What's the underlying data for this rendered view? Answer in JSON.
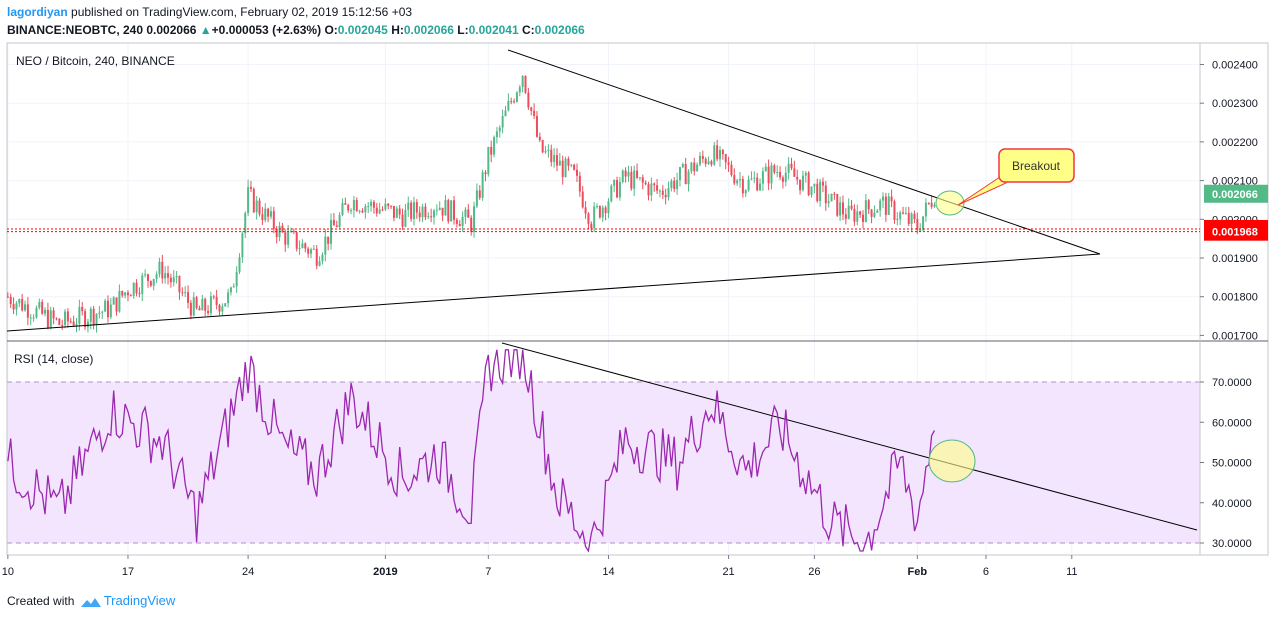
{
  "header": {
    "user": "lagordiyan",
    "published": "published on TradingView.com, February 02, 2019 15:12:56 +03",
    "symbol": "BINANCE:NEOBTC, 240",
    "last": "0.002066",
    "change_arrow": "▲",
    "change": "+0.000053 (+2.63%)",
    "o_label": "O:",
    "o": "0.002045",
    "h_label": "H:",
    "h": "0.002066",
    "l_label": "L:",
    "l": "0.002041",
    "c_label": "C:",
    "c": "0.002066"
  },
  "footer": {
    "created_with": "Created with",
    "brand": "TradingView",
    "logo_icon": "tradingview-logo-icon"
  },
  "colors": {
    "up": "#53b987",
    "down": "#eb4d5c",
    "rsi": "#9c27b0",
    "rsi_band": "#f3e5fd",
    "accent": "#2196f3",
    "price_tag": "#53b987",
    "level_tag": "#ff0000",
    "callout": "#ffff88"
  },
  "chart_data": [
    {
      "type": "candlestick",
      "title": "NEO / Bitcoin, 240, BINANCE",
      "y_ticks": [
        "0.001700",
        "0.001800",
        "0.001900",
        "0.002000",
        "0.002100",
        "0.002200",
        "0.002300",
        "0.002400"
      ],
      "ylim": [
        0.00166,
        0.00244
      ],
      "x_ticks": [
        "10",
        "17",
        "24",
        "2019",
        "7",
        "14",
        "21",
        "26",
        "Feb",
        "6",
        "11"
      ],
      "last_price": "0.002066",
      "horizontal_levels": [
        "0.001975",
        "0.001968"
      ],
      "annotation": "Breakout",
      "key_points": [
        {
          "date": "Dec 10",
          "close": 0.0018
        },
        {
          "date": "Dec 13",
          "close": 0.00173
        },
        {
          "date": "Dec 16",
          "close": 0.00177
        },
        {
          "date": "Dec 17",
          "close": 0.00182
        },
        {
          "date": "Dec 19",
          "close": 0.00187
        },
        {
          "date": "Dec 21",
          "close": 0.00176
        },
        {
          "date": "Dec 23",
          "close": 0.0018
        },
        {
          "date": "Dec 24",
          "close": 0.00206
        },
        {
          "date": "Dec 26",
          "close": 0.00196
        },
        {
          "date": "Dec 28",
          "close": 0.00191
        },
        {
          "date": "Dec 30",
          "close": 0.00205
        },
        {
          "date": "Jan 2",
          "close": 0.00201
        },
        {
          "date": "Jan 4",
          "close": 0.00204
        },
        {
          "date": "Jan 6",
          "close": 0.00199
        },
        {
          "date": "Jan 7",
          "close": 0.00216
        },
        {
          "date": "Jan 9",
          "close": 0.00238
        },
        {
          "date": "Jan 10",
          "close": 0.00218
        },
        {
          "date": "Jan 12",
          "close": 0.00211
        },
        {
          "date": "Jan 13",
          "close": 0.002
        },
        {
          "date": "Jan 15",
          "close": 0.00211
        },
        {
          "date": "Jan 17",
          "close": 0.00207
        },
        {
          "date": "Jan 20",
          "close": 0.00217
        },
        {
          "date": "Jan 22",
          "close": 0.00209
        },
        {
          "date": "Jan 24",
          "close": 0.00213
        },
        {
          "date": "Jan 26",
          "close": 0.00208
        },
        {
          "date": "Jan 28",
          "close": 0.00201
        },
        {
          "date": "Jan 30",
          "close": 0.00204
        },
        {
          "date": "Feb 1",
          "close": 0.00198
        },
        {
          "date": "Feb 2",
          "close": 0.002066
        }
      ]
    },
    {
      "type": "line",
      "title": "RSI (14, close)",
      "y_ticks": [
        "30.0000",
        "40.0000",
        "50.0000",
        "60.0000",
        "70.0000"
      ],
      "ylim": [
        27,
        75
      ],
      "bands": [
        30,
        70
      ],
      "key_points": [
        {
          "date": "Dec 10",
          "value": 50
        },
        {
          "date": "Dec 13",
          "value": 38
        },
        {
          "date": "Dec 16",
          "value": 63
        },
        {
          "date": "Dec 19",
          "value": 55
        },
        {
          "date": "Dec 21",
          "value": 37
        },
        {
          "date": "Dec 24",
          "value": 74
        },
        {
          "date": "Dec 26",
          "value": 54
        },
        {
          "date": "Dec 28",
          "value": 47
        },
        {
          "date": "Dec 30",
          "value": 66
        },
        {
          "date": "Jan 2",
          "value": 46
        },
        {
          "date": "Jan 4",
          "value": 52
        },
        {
          "date": "Jan 6",
          "value": 38
        },
        {
          "date": "Jan 7",
          "value": 74
        },
        {
          "date": "Jan 9",
          "value": 78
        },
        {
          "date": "Jan 11",
          "value": 42
        },
        {
          "date": "Jan 13",
          "value": 30
        },
        {
          "date": "Jan 15",
          "value": 56
        },
        {
          "date": "Jan 18",
          "value": 50
        },
        {
          "date": "Jan 20",
          "value": 65
        },
        {
          "date": "Jan 22",
          "value": 48
        },
        {
          "date": "Jan 24",
          "value": 59
        },
        {
          "date": "Jan 27",
          "value": 35
        },
        {
          "date": "Jan 29",
          "value": 30
        },
        {
          "date": "Jan 31",
          "value": 50
        },
        {
          "date": "Feb 1",
          "value": 36
        },
        {
          "date": "Feb 2",
          "value": 61
        }
      ]
    }
  ]
}
